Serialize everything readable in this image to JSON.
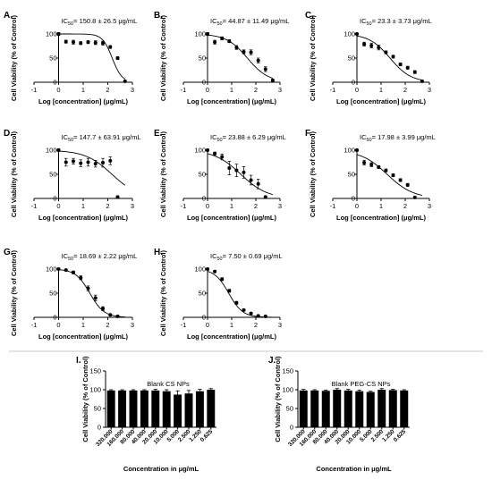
{
  "chart_data": [
    {
      "id": "A",
      "type": "scatter",
      "panel_label": "A.",
      "ic50_prefix": "IC",
      "ic50_sub": "50",
      "ic50_value": "= 150.8 ± 26.5 μg/mL",
      "xlabel": "Log [concentration] (μg/mL)",
      "ylabel": "Cell Viability (% of Control)",
      "xlim": [
        -1,
        3
      ],
      "ylim": [
        0,
        100
      ],
      "xticks": [
        "-1",
        "0",
        "1",
        "2",
        "3"
      ],
      "yticks": [
        "0",
        "50",
        "100"
      ],
      "points": [
        [
          0,
          100
        ],
        [
          0.3,
          84
        ],
        [
          0.6,
          83
        ],
        [
          0.9,
          81
        ],
        [
          1.2,
          83
        ],
        [
          1.5,
          82
        ],
        [
          1.8,
          81
        ],
        [
          2.1,
          73
        ],
        [
          2.4,
          50
        ],
        [
          2.7,
          2
        ]
      ],
      "errors": [
        3,
        3,
        4,
        3,
        3,
        4,
        4,
        3,
        3,
        2
      ],
      "fit": {
        "top": 100,
        "bottom": 0,
        "logIC50": 2.18,
        "hill": 2.2
      }
    },
    {
      "id": "B",
      "type": "scatter",
      "panel_label": "B.",
      "ic50_prefix": "IC",
      "ic50_sub": "50",
      "ic50_value": "= 44.87 ± 11.49 μg/mL",
      "xlabel": "Log [concentration] (μg/mL)",
      "ylabel": "Cell Viability (% of Control)",
      "xlim": [
        -1,
        3
      ],
      "ylim": [
        0,
        100
      ],
      "xticks": [
        "-1",
        "0",
        "1",
        "2",
        "3"
      ],
      "yticks": [
        "0",
        "50",
        "100"
      ],
      "points": [
        [
          0,
          100
        ],
        [
          0.3,
          83
        ],
        [
          0.6,
          91
        ],
        [
          0.9,
          85
        ],
        [
          1.2,
          72
        ],
        [
          1.5,
          63
        ],
        [
          1.8,
          62
        ],
        [
          2.1,
          45
        ],
        [
          2.4,
          27
        ],
        [
          2.7,
          4
        ]
      ],
      "errors": [
        3,
        4,
        3,
        3,
        4,
        4,
        5,
        5,
        5,
        2
      ],
      "fit": {
        "top": 100,
        "bottom": 0,
        "logIC50": 1.65,
        "hill": 1.0
      }
    },
    {
      "id": "C",
      "type": "scatter",
      "panel_label": "C.",
      "ic50_prefix": "IC",
      "ic50_sub": "50",
      "ic50_value": "= 23.3 ± 3.73 μg/mL",
      "xlabel": "Log [concentration] (μg/mL)",
      "ylabel": "Cell Viability (% of Control)",
      "xlim": [
        -1,
        3
      ],
      "ylim": [
        0,
        100
      ],
      "xticks": [
        "-1",
        "0",
        "1",
        "2",
        "3"
      ],
      "yticks": [
        "0",
        "50",
        "100"
      ],
      "points": [
        [
          0,
          100
        ],
        [
          0.3,
          79
        ],
        [
          0.6,
          76
        ],
        [
          0.9,
          72
        ],
        [
          1.2,
          62
        ],
        [
          1.5,
          53
        ],
        [
          1.8,
          37
        ],
        [
          2.1,
          30
        ],
        [
          2.4,
          21
        ],
        [
          2.7,
          2
        ]
      ],
      "errors": [
        2,
        4,
        5,
        5,
        3,
        3,
        3,
        3,
        3,
        2
      ],
      "fit": {
        "top": 100,
        "bottom": 0,
        "logIC50": 1.37,
        "hill": 1.0
      }
    },
    {
      "id": "D",
      "type": "scatter",
      "panel_label": "D.",
      "ic50_prefix": "IC",
      "ic50_sub": "50",
      "ic50_value": "= 147.7 ± 63.91 μg/mL",
      "xlabel": "Log [concentration] (μg/mL)",
      "ylabel": "Cell Viability (% of Control)",
      "xlim": [
        -1,
        3
      ],
      "ylim": [
        0,
        100
      ],
      "xticks": [
        "-1",
        "0",
        "1",
        "2",
        "3"
      ],
      "yticks": [
        "0",
        "50",
        "100"
      ],
      "points": [
        [
          0,
          100
        ],
        [
          0.3,
          75
        ],
        [
          0.6,
          77
        ],
        [
          0.9,
          73
        ],
        [
          1.2,
          75
        ],
        [
          1.5,
          72
        ],
        [
          1.8,
          74
        ],
        [
          2.1,
          78
        ],
        [
          2.4,
          3
        ]
      ],
      "errors": [
        3,
        8,
        6,
        7,
        8,
        7,
        9,
        8,
        2
      ],
      "fit": {
        "top": 100,
        "bottom": 0,
        "logIC50": 2.17,
        "hill": 0.8
      }
    },
    {
      "id": "E",
      "type": "scatter",
      "panel_label": "E.",
      "ic50_prefix": "IC",
      "ic50_sub": "50",
      "ic50_value": "= 23.88 ± 6.29 μg/mL",
      "xlabel": "Log [concentration] (μg/mL)",
      "ylabel": "Cell Viability (% of Control)",
      "xlim": [
        -1,
        3
      ],
      "ylim": [
        0,
        100
      ],
      "xticks": [
        "-1",
        "0",
        "1",
        "2",
        "3"
      ],
      "yticks": [
        "0",
        "50",
        "100"
      ],
      "points": [
        [
          0,
          100
        ],
        [
          0.3,
          93
        ],
        [
          0.6,
          86
        ],
        [
          0.9,
          63
        ],
        [
          1.2,
          58
        ],
        [
          1.5,
          54
        ],
        [
          1.8,
          38
        ],
        [
          2.1,
          30
        ],
        [
          2.4,
          3
        ]
      ],
      "errors": [
        2,
        3,
        6,
        14,
        13,
        12,
        10,
        10,
        2
      ],
      "fit": {
        "top": 100,
        "bottom": 0,
        "logIC50": 1.38,
        "hill": 0.8
      }
    },
    {
      "id": "F",
      "type": "scatter",
      "panel_label": "F.",
      "ic50_prefix": "IC",
      "ic50_sub": "50",
      "ic50_value": "= 17.98 ± 3.99 μg/mL",
      "xlabel": "Log [concentration] (μg/mL)",
      "ylabel": "Cell Viability (% of Control)",
      "xlim": [
        -1,
        3
      ],
      "ylim": [
        0,
        100
      ],
      "xticks": [
        "-1",
        "0",
        "1",
        "2",
        "3"
      ],
      "yticks": [
        "0",
        "50",
        "100"
      ],
      "points": [
        [
          0,
          100
        ],
        [
          0.3,
          74
        ],
        [
          0.6,
          70
        ],
        [
          0.9,
          65
        ],
        [
          1.2,
          58
        ],
        [
          1.5,
          48
        ],
        [
          1.8,
          38
        ],
        [
          2.1,
          28
        ],
        [
          2.4,
          2
        ]
      ],
      "errors": [
        2,
        5,
        4,
        3,
        3,
        3,
        3,
        3,
        2
      ],
      "fit": {
        "top": 100,
        "bottom": 0,
        "logIC50": 1.25,
        "hill": 0.8
      }
    },
    {
      "id": "G",
      "type": "scatter",
      "panel_label": "G.",
      "ic50_prefix": "IC",
      "ic50_sub": "50",
      "ic50_value": "= 18.69 ± 2.22 μg/mL",
      "xlabel": "Log [concentration] (μg/mL)",
      "ylabel": "Cell Viability (% of Control)",
      "xlim": [
        -1,
        3
      ],
      "ylim": [
        0,
        100
      ],
      "xticks": [
        "-1",
        "0",
        "1",
        "2",
        "3"
      ],
      "yticks": [
        "0",
        "50",
        "100"
      ],
      "points": [
        [
          0,
          100
        ],
        [
          0.3,
          98
        ],
        [
          0.6,
          93
        ],
        [
          0.9,
          82
        ],
        [
          1.2,
          60
        ],
        [
          1.5,
          40
        ],
        [
          1.8,
          18
        ],
        [
          2.1,
          5
        ],
        [
          2.4,
          2
        ]
      ],
      "errors": [
        2,
        2,
        3,
        4,
        5,
        6,
        4,
        2,
        2
      ],
      "fit": {
        "top": 100,
        "bottom": 0,
        "logIC50": 1.27,
        "hill": 1.5
      }
    },
    {
      "id": "H",
      "type": "scatter",
      "panel_label": "H.",
      "ic50_prefix": "IC",
      "ic50_sub": "50",
      "ic50_value": "= 7.50 ± 0.69 μg/mL",
      "xlabel": "Log [concentration] (μg/mL)",
      "ylabel": "Cell Viability (% of Control)",
      "xlim": [
        -1,
        3
      ],
      "ylim": [
        0,
        100
      ],
      "xticks": [
        "-1",
        "0",
        "1",
        "2",
        "3"
      ],
      "yticks": [
        "0",
        "50",
        "100"
      ],
      "points": [
        [
          0,
          100
        ],
        [
          0.3,
          95
        ],
        [
          0.6,
          79
        ],
        [
          0.9,
          55
        ],
        [
          1.2,
          30
        ],
        [
          1.5,
          15
        ],
        [
          1.8,
          8
        ],
        [
          2.1,
          3
        ],
        [
          2.4,
          2
        ]
      ],
      "errors": [
        2,
        2,
        3,
        3,
        3,
        2,
        2,
        1,
        1
      ],
      "fit": {
        "top": 100,
        "bottom": 0,
        "logIC50": 0.875,
        "hill": 1.5
      }
    },
    {
      "id": "I",
      "type": "bar",
      "panel_label": "I.",
      "title": "Blank CS NPs",
      "xlabel": "Concentration in μg/mL",
      "ylabel": "Cell Viability (% of Control)",
      "ylim": [
        0,
        150
      ],
      "yticks": [
        "0",
        "50",
        "100",
        "150"
      ],
      "categories": [
        "320.000",
        "160.000",
        "80.000",
        "40.000",
        "20.000",
        "10.000",
        "5.000",
        "2.500",
        "1.250",
        "0.625"
      ],
      "values": [
        98,
        98,
        98,
        98,
        98,
        96,
        87,
        90,
        96,
        100
      ],
      "errors": [
        2,
        2,
        2,
        2,
        3,
        4,
        10,
        8,
        5,
        3
      ]
    },
    {
      "id": "J",
      "type": "bar",
      "panel_label": "J.",
      "title": "Blank PEG-CS NPs",
      "xlabel": "Concentration in μg/mL",
      "ylabel": "Cell Viability (% of Control)",
      "ylim": [
        0,
        150
      ],
      "yticks": [
        "0",
        "50",
        "100",
        "150"
      ],
      "categories": [
        "320.000",
        "160.000",
        "80.000",
        "40.000",
        "20.000",
        "10.000",
        "5.000",
        "2.500",
        "1.250",
        "0.625"
      ],
      "values": [
        98,
        98,
        97,
        100,
        98,
        96,
        94,
        100,
        99,
        98
      ],
      "errors": [
        3,
        2,
        2,
        3,
        3,
        3,
        2,
        3,
        2,
        2
      ]
    }
  ]
}
